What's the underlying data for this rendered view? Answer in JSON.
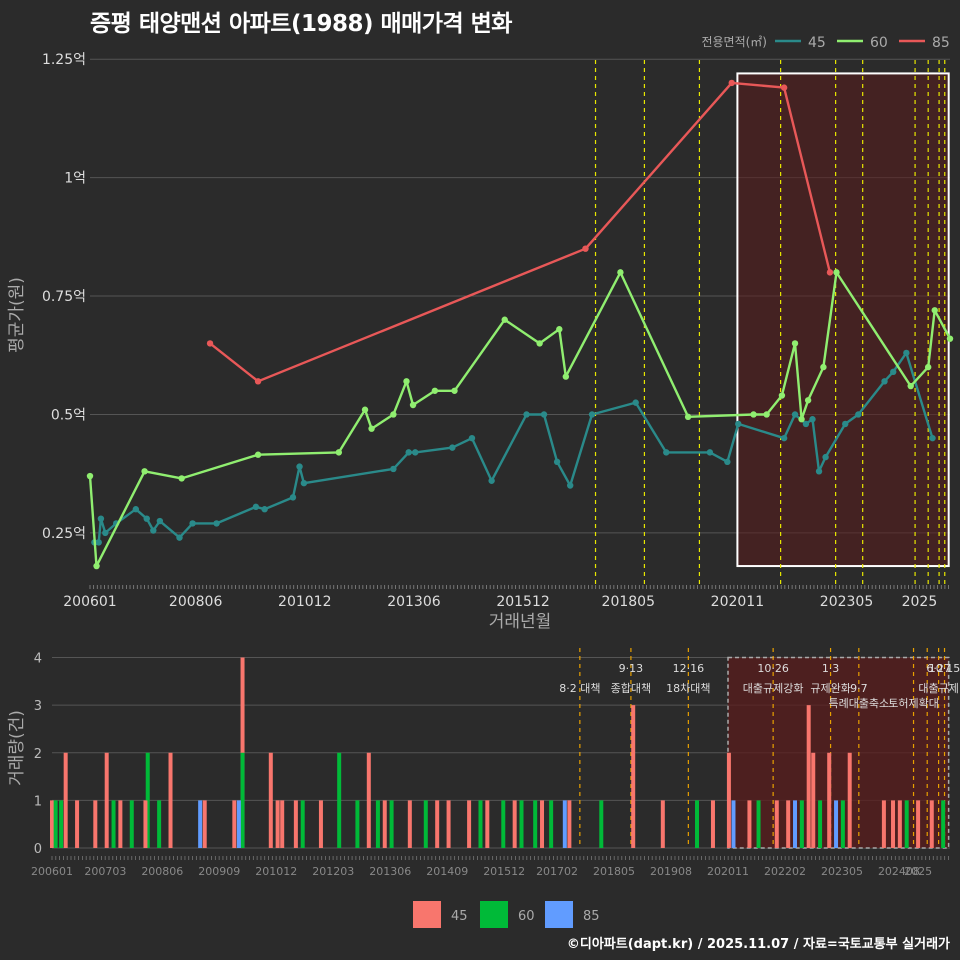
{
  "title": "증평 태양맨션 아파트(1988) 매매가격 변화",
  "footer": "©디아파트(dapt.kr) / 2025.11.07 / 자료=국토교통부 실거래가",
  "colors": {
    "bg": "#2b2b2b",
    "grid": "#555555",
    "s45": "#2a8a8a",
    "s60": "#90ee70",
    "s85": "#e85858",
    "bar45": "#f8766d",
    "bar60": "#00ba38",
    "bar85": "#619cff",
    "policy_line": "#e8e800",
    "policy_line_bottom": "#e8a000",
    "highlight": "#5a1c1c"
  },
  "chart_data": [
    {
      "type": "line",
      "name": "price",
      "xlabel": "거래년월",
      "ylabel": "평균가(원)",
      "legend_title": "전용면적(㎡)",
      "legend_position": "top-right",
      "xlim": [
        2006.0,
        2025.7
      ],
      "ylim": [
        0.14,
        1.28
      ],
      "yticks": [
        0.25,
        0.5,
        0.75,
        1.0,
        1.25
      ],
      "ytick_labels": [
        "0.25억",
        "0.5억",
        "0.75억",
        "1억",
        "1.25억"
      ],
      "xticks": [
        2006.0,
        2008.42,
        2010.92,
        2013.42,
        2015.92,
        2018.33,
        2020.83,
        2023.33,
        2025.0
      ],
      "xtick_labels": [
        "200601",
        "200806",
        "201012",
        "201306",
        "201512",
        "201805",
        "202011",
        "202305",
        "2025"
      ],
      "highlight": {
        "x0": 2020.83,
        "x1": 2025.67,
        "y0": 0.18,
        "y1": 1.22
      },
      "policy_lines": [
        2017.58,
        2018.7,
        2019.96,
        2021.82,
        2023.08,
        2023.7,
        2024.9,
        2025.2,
        2025.45,
        2025.58
      ],
      "series": [
        {
          "name": "45",
          "points": [
            [
              2006.1,
              0.23
            ],
            [
              2006.2,
              0.23
            ],
            [
              2006.25,
              0.28
            ],
            [
              2006.35,
              0.25
            ],
            [
              2006.6,
              0.27
            ],
            [
              2007.05,
              0.3
            ],
            [
              2007.3,
              0.28
            ],
            [
              2007.45,
              0.255
            ],
            [
              2007.6,
              0.275
            ],
            [
              2008.05,
              0.24
            ],
            [
              2008.35,
              0.27
            ],
            [
              2008.9,
              0.27
            ],
            [
              2009.8,
              0.305
            ],
            [
              2010.0,
              0.3
            ],
            [
              2010.65,
              0.325
            ],
            [
              2010.8,
              0.39
            ],
            [
              2010.9,
              0.355
            ],
            [
              2012.95,
              0.385
            ],
            [
              2013.3,
              0.42
            ],
            [
              2013.45,
              0.42
            ],
            [
              2014.3,
              0.43
            ],
            [
              2014.75,
              0.45
            ],
            [
              2015.2,
              0.36
            ],
            [
              2016.0,
              0.5
            ],
            [
              2016.4,
              0.5
            ],
            [
              2016.7,
              0.4
            ],
            [
              2017.0,
              0.35
            ],
            [
              2017.5,
              0.5
            ],
            [
              2018.5,
              0.525
            ],
            [
              2019.2,
              0.42
            ],
            [
              2020.2,
              0.42
            ],
            [
              2020.6,
              0.4
            ],
            [
              2020.85,
              0.48
            ],
            [
              2021.9,
              0.45
            ],
            [
              2022.15,
              0.5
            ],
            [
              2022.4,
              0.48
            ],
            [
              2022.55,
              0.49
            ],
            [
              2022.7,
              0.38
            ],
            [
              2022.85,
              0.41
            ],
            [
              2023.3,
              0.48
            ],
            [
              2023.6,
              0.5
            ],
            [
              2024.2,
              0.57
            ],
            [
              2024.4,
              0.59
            ],
            [
              2024.7,
              0.63
            ],
            [
              2025.3,
              0.45
            ]
          ]
        },
        {
          "name": "60",
          "points": [
            [
              2006.0,
              0.37
            ],
            [
              2006.15,
              0.18
            ],
            [
              2007.25,
              0.38
            ],
            [
              2008.1,
              0.365
            ],
            [
              2009.85,
              0.415
            ],
            [
              2011.7,
              0.42
            ],
            [
              2012.3,
              0.51
            ],
            [
              2012.45,
              0.47
            ],
            [
              2012.95,
              0.5
            ],
            [
              2013.25,
              0.57
            ],
            [
              2013.4,
              0.52
            ],
            [
              2013.9,
              0.55
            ],
            [
              2014.35,
              0.55
            ],
            [
              2015.5,
              0.7
            ],
            [
              2016.3,
              0.65
            ],
            [
              2016.75,
              0.68
            ],
            [
              2016.9,
              0.58
            ],
            [
              2018.15,
              0.8
            ],
            [
              2019.7,
              0.495
            ],
            [
              2021.2,
              0.5
            ],
            [
              2021.5,
              0.5
            ],
            [
              2021.85,
              0.54
            ],
            [
              2022.15,
              0.65
            ],
            [
              2022.3,
              0.49
            ],
            [
              2022.45,
              0.53
            ],
            [
              2022.8,
              0.6
            ],
            [
              2023.1,
              0.8
            ],
            [
              2024.8,
              0.56
            ],
            [
              2025.2,
              0.6
            ],
            [
              2025.35,
              0.72
            ],
            [
              2025.7,
              0.66
            ]
          ]
        },
        {
          "name": "85",
          "points": [
            [
              2008.75,
              0.65
            ],
            [
              2009.85,
              0.57
            ],
            [
              2017.35,
              0.85
            ],
            [
              2020.7,
              1.2
            ],
            [
              2021.9,
              1.19
            ],
            [
              2022.95,
              0.8
            ]
          ]
        }
      ]
    },
    {
      "type": "bar",
      "name": "volume",
      "ylabel": "거래량(건)",
      "ylim": [
        0,
        4.2
      ],
      "yticks": [
        0,
        1,
        2,
        3,
        4
      ],
      "xlim": [
        2006.0,
        2025.7
      ],
      "xtick_labels": [
        "200601",
        "200703",
        "200806",
        "200909",
        "201012",
        "201203",
        "201306",
        "201409",
        "201512",
        "201702",
        "201805",
        "201908",
        "202011",
        "202202",
        "202305",
        "202408",
        "2025"
      ],
      "xticks": [
        2006.0,
        2007.17,
        2008.42,
        2009.67,
        2010.92,
        2012.17,
        2013.42,
        2014.67,
        2015.92,
        2017.08,
        2018.33,
        2019.58,
        2020.83,
        2022.08,
        2023.33,
        2024.58,
        2025.0
      ],
      "legend": [
        "45",
        "60",
        "85"
      ],
      "legend_position": "bottom",
      "highlight": {
        "x0": 2020.83,
        "x1": 2025.67,
        "y0": 0,
        "y1": 4.0
      },
      "policy_lines": [
        2017.58,
        2018.7,
        2019.96,
        2021.82,
        2023.08,
        2023.7,
        2024.9,
        2025.2,
        2025.45,
        2025.58
      ],
      "annotations": [
        {
          "x": 2017.58,
          "row": 1,
          "text": "8·2 대책"
        },
        {
          "x": 2018.7,
          "row": 0,
          "text": "9·13"
        },
        {
          "x": 2018.7,
          "row": 1,
          "text": "종합대책"
        },
        {
          "x": 2019.96,
          "row": 0,
          "text": "12·16"
        },
        {
          "x": 2019.96,
          "row": 1,
          "text": "18차대책"
        },
        {
          "x": 2021.82,
          "row": 0,
          "text": "10·26"
        },
        {
          "x": 2021.82,
          "row": 1,
          "text": "대출규제강화"
        },
        {
          "x": 2023.08,
          "row": 0,
          "text": "1·3"
        },
        {
          "x": 2023.08,
          "row": 1,
          "text": "규제완화"
        },
        {
          "x": 2023.7,
          "row": 1,
          "text": "9·7"
        },
        {
          "x": 2023.7,
          "row": 2,
          "text": "특례대출축소"
        },
        {
          "x": 2024.9,
          "row": 2,
          "text": "토허제확대"
        },
        {
          "x": 2025.45,
          "row": 0,
          "text": "6·27"
        },
        {
          "x": 2025.58,
          "row": 0,
          "text": "10·15"
        },
        {
          "x": 2025.45,
          "row": 1,
          "text": "대출규제"
        }
      ],
      "bars": [
        {
          "x": 2006.0,
          "s": "45",
          "v": 1
        },
        {
          "x": 2006.08,
          "s": "60",
          "v": 1
        },
        {
          "x": 2006.2,
          "s": "60",
          "v": 1
        },
        {
          "x": 2006.3,
          "s": "45",
          "v": 2
        },
        {
          "x": 2006.55,
          "s": "45",
          "v": 1
        },
        {
          "x": 2006.95,
          "s": "45",
          "v": 1
        },
        {
          "x": 2007.2,
          "s": "45",
          "v": 2
        },
        {
          "x": 2007.35,
          "s": "60",
          "v": 1
        },
        {
          "x": 2007.5,
          "s": "45",
          "v": 1
        },
        {
          "x": 2007.75,
          "s": "60",
          "v": 1
        },
        {
          "x": 2008.05,
          "s": "45",
          "v": 1
        },
        {
          "x": 2008.1,
          "s": "60",
          "v": 2
        },
        {
          "x": 2008.35,
          "s": "60",
          "v": 1
        },
        {
          "x": 2008.6,
          "s": "45",
          "v": 2
        },
        {
          "x": 2009.25,
          "s": "85",
          "v": 1
        },
        {
          "x": 2009.35,
          "s": "45",
          "v": 1
        },
        {
          "x": 2010.0,
          "s": "45",
          "v": 1
        },
        {
          "x": 2010.1,
          "s": "85",
          "v": 1
        },
        {
          "x": 2010.18,
          "s": "45",
          "v": 4
        },
        {
          "x": 2010.18,
          "s": "60",
          "v": 2
        },
        {
          "x": 2010.8,
          "s": "45",
          "v": 2
        },
        {
          "x": 2010.95,
          "s": "45",
          "v": 1
        },
        {
          "x": 2011.05,
          "s": "45",
          "v": 1
        },
        {
          "x": 2011.35,
          "s": "45",
          "v": 1
        },
        {
          "x": 2011.5,
          "s": "60",
          "v": 1
        },
        {
          "x": 2011.9,
          "s": "45",
          "v": 1
        },
        {
          "x": 2012.3,
          "s": "60",
          "v": 2
        },
        {
          "x": 2012.7,
          "s": "60",
          "v": 1
        },
        {
          "x": 2012.95,
          "s": "45",
          "v": 2
        },
        {
          "x": 2013.15,
          "s": "60",
          "v": 1
        },
        {
          "x": 2013.3,
          "s": "45",
          "v": 1
        },
        {
          "x": 2013.45,
          "s": "60",
          "v": 1
        },
        {
          "x": 2013.85,
          "s": "45",
          "v": 1
        },
        {
          "x": 2014.2,
          "s": "60",
          "v": 1
        },
        {
          "x": 2014.45,
          "s": "45",
          "v": 1
        },
        {
          "x": 2014.7,
          "s": "45",
          "v": 1
        },
        {
          "x": 2015.15,
          "s": "45",
          "v": 1
        },
        {
          "x": 2015.4,
          "s": "60",
          "v": 1
        },
        {
          "x": 2015.55,
          "s": "45",
          "v": 1
        },
        {
          "x": 2015.9,
          "s": "60",
          "v": 1
        },
        {
          "x": 2016.15,
          "s": "45",
          "v": 1
        },
        {
          "x": 2016.3,
          "s": "60",
          "v": 1
        },
        {
          "x": 2016.6,
          "s": "60",
          "v": 1
        },
        {
          "x": 2016.75,
          "s": "45",
          "v": 1
        },
        {
          "x": 2016.95,
          "s": "60",
          "v": 1
        },
        {
          "x": 2017.25,
          "s": "85",
          "v": 1
        },
        {
          "x": 2017.35,
          "s": "45",
          "v": 1
        },
        {
          "x": 2018.05,
          "s": "60",
          "v": 1
        },
        {
          "x": 2018.75,
          "s": "45",
          "v": 3
        },
        {
          "x": 2019.4,
          "s": "45",
          "v": 1
        },
        {
          "x": 2020.15,
          "s": "60",
          "v": 1
        },
        {
          "x": 2020.5,
          "s": "45",
          "v": 1
        },
        {
          "x": 2020.85,
          "s": "45",
          "v": 2
        },
        {
          "x": 2020.95,
          "s": "85",
          "v": 1
        },
        {
          "x": 2021.3,
          "s": "45",
          "v": 1
        },
        {
          "x": 2021.5,
          "s": "60",
          "v": 1
        },
        {
          "x": 2021.9,
          "s": "45",
          "v": 1
        },
        {
          "x": 2022.15,
          "s": "45",
          "v": 1
        },
        {
          "x": 2022.3,
          "s": "85",
          "v": 1
        },
        {
          "x": 2022.45,
          "s": "60",
          "v": 1
        },
        {
          "x": 2022.6,
          "s": "45",
          "v": 3
        },
        {
          "x": 2022.7,
          "s": "45",
          "v": 2
        },
        {
          "x": 2022.85,
          "s": "60",
          "v": 1
        },
        {
          "x": 2023.05,
          "s": "45",
          "v": 2
        },
        {
          "x": 2023.2,
          "s": "85",
          "v": 1
        },
        {
          "x": 2023.35,
          "s": "60",
          "v": 1
        },
        {
          "x": 2023.5,
          "s": "45",
          "v": 2
        },
        {
          "x": 2024.25,
          "s": "45",
          "v": 1
        },
        {
          "x": 2024.45,
          "s": "45",
          "v": 1
        },
        {
          "x": 2024.6,
          "s": "45",
          "v": 1
        },
        {
          "x": 2024.75,
          "s": "60",
          "v": 1
        },
        {
          "x": 2025.0,
          "s": "45",
          "v": 1
        },
        {
          "x": 2025.3,
          "s": "45",
          "v": 1
        },
        {
          "x": 2025.55,
          "s": "60",
          "v": 1
        }
      ]
    }
  ]
}
